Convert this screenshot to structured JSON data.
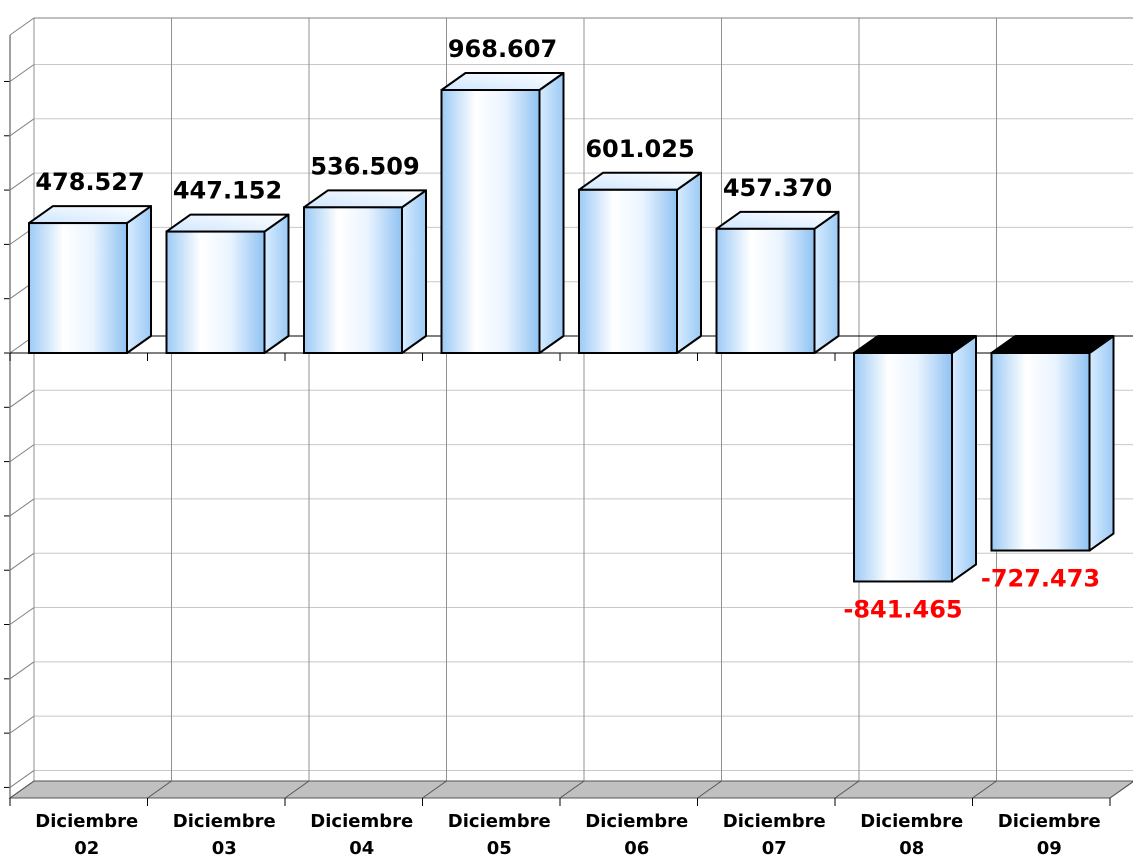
{
  "chart_data": {
    "type": "bar",
    "style": "3d-column",
    "categories": [
      [
        "Diciembre",
        "02"
      ],
      [
        "Diciembre",
        "03"
      ],
      [
        "Diciembre",
        "04"
      ],
      [
        "Diciembre",
        "05"
      ],
      [
        "Diciembre",
        "06"
      ],
      [
        "Diciembre",
        "07"
      ],
      [
        "Diciembre",
        "08"
      ],
      [
        "Diciembre",
        "09"
      ]
    ],
    "values": [
      478527,
      447152,
      536509,
      968607,
      601025,
      457370,
      -841465,
      -727473
    ],
    "value_labels": [
      "478.527",
      "447.152",
      "536.509",
      "968.607",
      "601.025",
      "457.370",
      "-841.465",
      "-727.473"
    ],
    "title": "",
    "xlabel": "",
    "ylabel": "",
    "ylim": [
      -1600000,
      1250000
    ],
    "grid": true,
    "legend": "none",
    "colors": {
      "positive_label": "#000000",
      "negative_label": "#ff0000",
      "bar_light": "#ffffff",
      "bar_dark": "#9ccaf5",
      "negative_top": "#000000",
      "floor": "#c0c0c0",
      "gridline": "#c8c8c8"
    }
  }
}
